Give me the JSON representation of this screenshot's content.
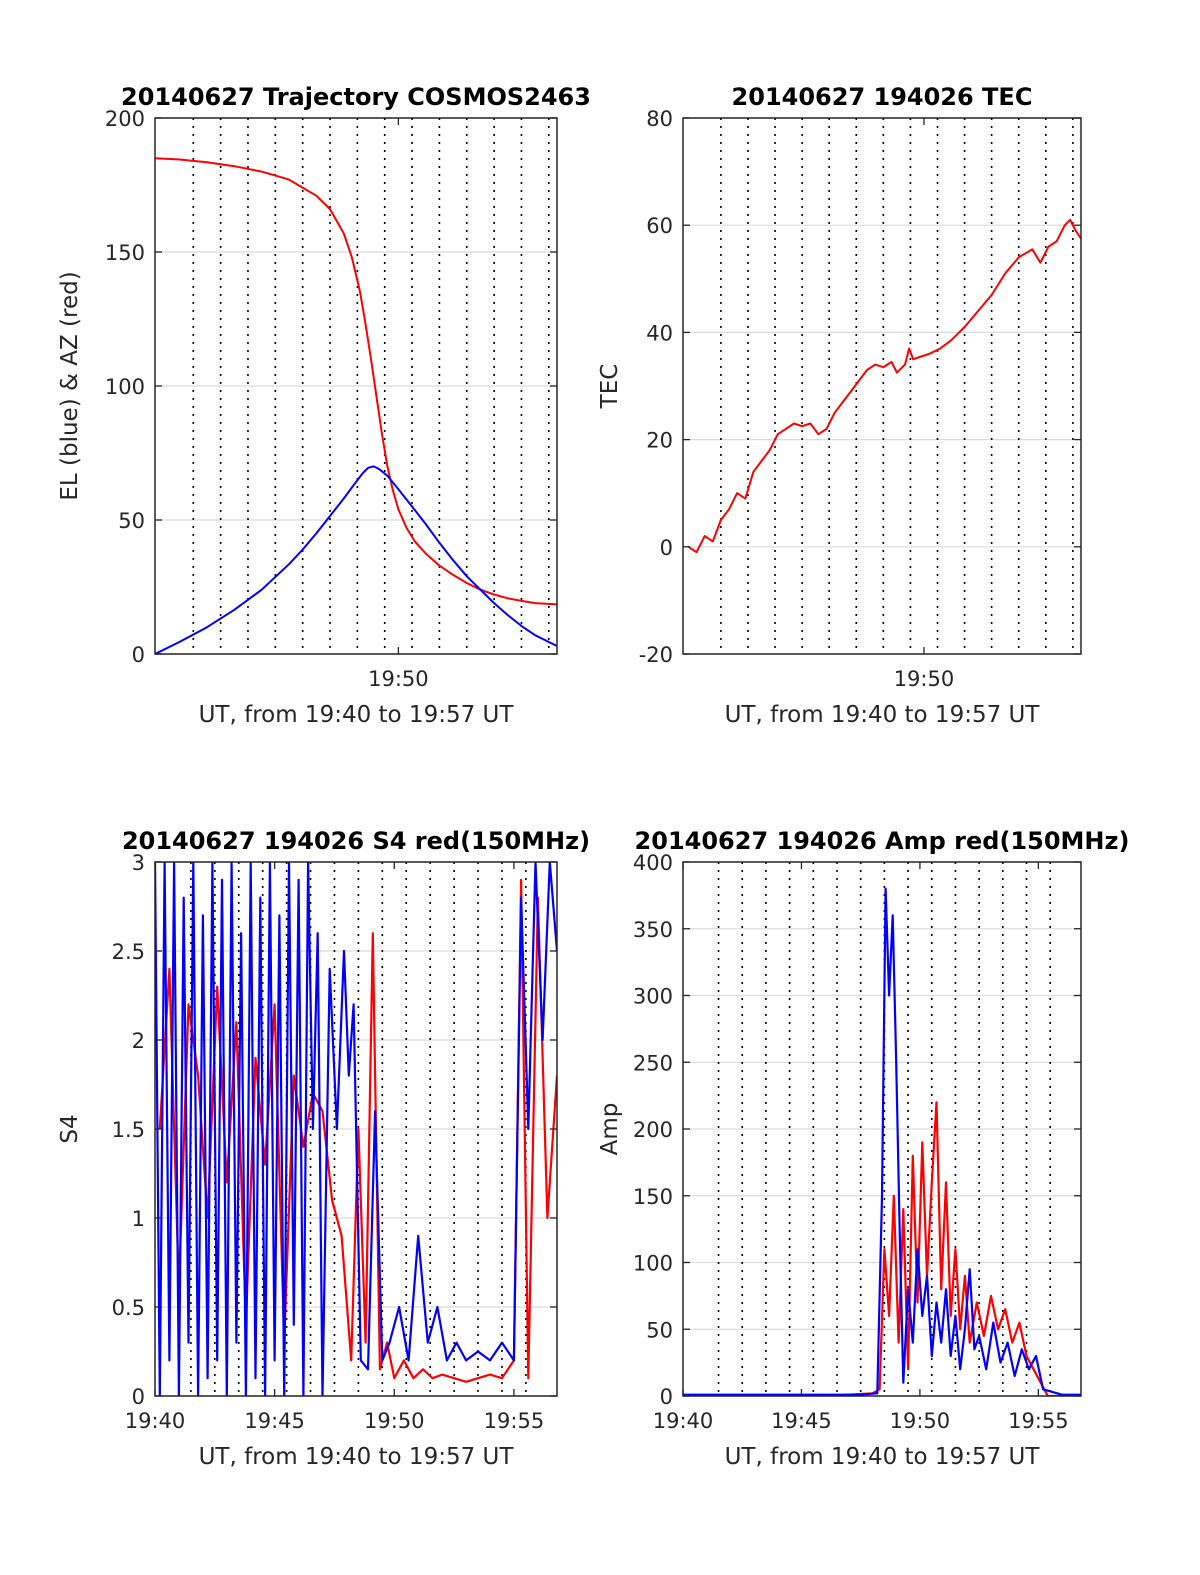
{
  "chart_data": [
    {
      "type": "line",
      "title": "20140627 Trajectory COSMOS2463",
      "xlabel": "UT, from 19:40 to 19:57 UT",
      "ylabel": "EL (blue) & AZ (red)",
      "xlim": [
        41.1,
        55.8
      ],
      "ylim": [
        0,
        200
      ],
      "xticks": [
        50
      ],
      "xtick_labels": [
        "19:50"
      ],
      "yticks": [
        0,
        50,
        100,
        150,
        200
      ],
      "ytick_labels": [
        "0",
        "50",
        "100",
        "150",
        "200"
      ],
      "vlines": [
        42.5,
        43.5,
        44.5,
        45.5,
        46.5,
        47.5,
        48.5,
        49.5,
        50.5,
        51.5,
        52.5,
        53.5,
        54.5,
        55.5
      ],
      "grid": true,
      "series": [
        {
          "name": "AZ",
          "color": "#ff0000",
          "x": [
            41.1,
            42.0,
            43.0,
            44.0,
            45.0,
            46.0,
            47.0,
            47.5,
            48.0,
            48.3,
            48.6,
            48.8,
            49.0,
            49.2,
            49.4,
            49.6,
            49.8,
            50.0,
            50.3,
            50.6,
            51.0,
            51.5,
            52.0,
            52.5,
            53.0,
            53.5,
            54.0,
            54.5,
            55.0,
            55.8
          ],
          "y": [
            185,
            184.5,
            183.5,
            182,
            180,
            177,
            171,
            166,
            157,
            148,
            135,
            123,
            110,
            96,
            82,
            70,
            61,
            54,
            47,
            42,
            37.5,
            33,
            29.5,
            26.5,
            24,
            22.2,
            20.8,
            19.8,
            19,
            18.5
          ]
        },
        {
          "name": "EL",
          "color": "#0000ff",
          "x": [
            41.1,
            42.0,
            43.0,
            44.0,
            45.0,
            46.0,
            46.5,
            47.0,
            47.5,
            48.0,
            48.4,
            48.7,
            48.9,
            49.1,
            49.3,
            49.6,
            50.0,
            50.5,
            51.0,
            51.5,
            52.0,
            52.5,
            53.0,
            53.5,
            54.0,
            54.5,
            55.0,
            55.8
          ],
          "y": [
            0,
            4.5,
            10,
            16.5,
            24,
            33.5,
            39,
            45,
            51.5,
            58,
            63.5,
            67.5,
            69.5,
            70,
            69,
            66.5,
            61.5,
            55,
            48.5,
            41.5,
            35,
            29,
            24,
            19,
            14.5,
            10.5,
            7,
            3
          ]
        }
      ]
    },
    {
      "type": "line",
      "title": "20140627 194026 TEC",
      "xlabel": "UT, from 19:40 to 19:57 UT",
      "ylabel": "TEC",
      "xlim": [
        41.1,
        55.8
      ],
      "ylim": [
        -20,
        80
      ],
      "xticks": [
        50
      ],
      "xtick_labels": [
        "19:50"
      ],
      "yticks": [
        -20,
        0,
        20,
        40,
        60,
        80
      ],
      "ytick_labels": [
        "-20",
        "0",
        "20",
        "40",
        "60",
        "80"
      ],
      "vlines": [
        42.5,
        43.5,
        44.5,
        45.5,
        46.5,
        47.5,
        48.5,
        49.5,
        50.5,
        51.5,
        52.5,
        53.5,
        54.5,
        55.5
      ],
      "grid": true,
      "series": [
        {
          "name": "TEC",
          "color": "#ff0000",
          "x": [
            41.3,
            41.6,
            41.9,
            42.2,
            42.5,
            42.8,
            43.1,
            43.4,
            43.7,
            44.0,
            44.3,
            44.6,
            44.9,
            45.2,
            45.5,
            45.8,
            46.1,
            46.4,
            46.7,
            47.0,
            47.3,
            47.6,
            47.9,
            48.2,
            48.5,
            48.8,
            49.0,
            49.3,
            49.45,
            49.6,
            49.9,
            50.2,
            50.6,
            51.0,
            51.5,
            52.0,
            52.5,
            53.0,
            53.5,
            54.0,
            54.3,
            54.6,
            54.9,
            55.2,
            55.4,
            55.6,
            55.8
          ],
          "y": [
            0,
            -1,
            2,
            1,
            5,
            7,
            10,
            9,
            14,
            16,
            18,
            21,
            22,
            23,
            22.5,
            23,
            21,
            22,
            25,
            27,
            29,
            31,
            33,
            34,
            33.5,
            34.5,
            32.5,
            34,
            37,
            35,
            35.5,
            36,
            37,
            38.5,
            41,
            44,
            47,
            51,
            54,
            55.5,
            53,
            56,
            57,
            60,
            61,
            59,
            57.5
          ]
        }
      ]
    },
    {
      "type": "line",
      "title": "20140627 194026 S4 red(150MHz)",
      "xlabel": "UT, from 19:40 to 19:57 UT",
      "ylabel": "S4",
      "xlim": [
        40,
        56.8
      ],
      "ylim": [
        0,
        3
      ],
      "xticks": [
        40,
        45,
        50,
        55
      ],
      "xtick_labels": [
        "19:40",
        "19:45",
        "19:50",
        "19:55"
      ],
      "yticks": [
        0,
        0.5,
        1,
        1.5,
        2,
        2.5,
        3
      ],
      "ytick_labels": [
        "0",
        "0.5",
        "1",
        "1.5",
        "2",
        "2.5",
        "3"
      ],
      "vlines": [
        41.5,
        42.5,
        43.5,
        44.5,
        45.5,
        46.5,
        47.5,
        48.5,
        49.5,
        50.5,
        51.5,
        52.5,
        53.5,
        54.5,
        55.5
      ],
      "grid": true,
      "series": [
        {
          "name": "red",
          "color": "#ff0000",
          "x": [
            40.2,
            40.6,
            41.0,
            41.4,
            41.8,
            42.2,
            42.6,
            43.0,
            43.4,
            43.8,
            44.2,
            44.6,
            45.0,
            45.4,
            45.8,
            46.2,
            46.6,
            47.0,
            47.4,
            47.8,
            48.2,
            48.5,
            48.8,
            49.1,
            49.4,
            49.7,
            50.0,
            50.4,
            50.8,
            51.2,
            51.6,
            52.0,
            52.5,
            53.0,
            53.5,
            54.0,
            54.5,
            55.0,
            55.3,
            55.6,
            56.0,
            56.4,
            56.8
          ],
          "y": [
            1.5,
            2.4,
            0.6,
            2.2,
            1.8,
            1.0,
            2.3,
            1.2,
            2.1,
            0.4,
            1.9,
            1.3,
            2.2,
            0.3,
            1.8,
            1.4,
            1.7,
            1.6,
            1.1,
            0.9,
            0.2,
            1.5,
            0.3,
            2.6,
            0.15,
            0.3,
            0.1,
            0.2,
            0.1,
            0.15,
            0.1,
            0.12,
            0.1,
            0.08,
            0.1,
            0.12,
            0.1,
            0.2,
            2.9,
            0.1,
            2.8,
            1.0,
            1.8
          ]
        },
        {
          "name": "blue",
          "color": "#0000ff",
          "x": [
            40.0,
            40.2,
            40.4,
            40.6,
            40.8,
            41.0,
            41.2,
            41.4,
            41.6,
            41.8,
            42.0,
            42.2,
            42.4,
            42.6,
            42.8,
            43.0,
            43.2,
            43.4,
            43.6,
            43.8,
            44.0,
            44.2,
            44.4,
            44.6,
            44.8,
            45.0,
            45.2,
            45.4,
            45.6,
            45.8,
            46.0,
            46.2,
            46.4,
            46.6,
            46.8,
            47.0,
            47.3,
            47.6,
            47.9,
            48.1,
            48.3,
            48.6,
            48.9,
            49.2,
            49.5,
            49.8,
            50.2,
            50.6,
            51.0,
            51.4,
            51.8,
            52.2,
            52.6,
            53.0,
            53.5,
            54.0,
            54.5,
            55.0,
            55.3,
            55.6,
            55.9,
            56.2,
            56.5,
            56.8
          ],
          "y": [
            3.0,
            0.0,
            3.0,
            0.2,
            3.0,
            0.0,
            2.8,
            0.3,
            3.0,
            0.0,
            2.7,
            0.1,
            3.0,
            0.2,
            2.9,
            0.0,
            3.0,
            0.3,
            2.6,
            0.0,
            3.0,
            0.1,
            2.8,
            0.0,
            3.0,
            0.2,
            2.7,
            0.0,
            3.0,
            0.4,
            2.9,
            0.0,
            3.0,
            1.5,
            2.6,
            0.0,
            2.4,
            1.5,
            2.5,
            1.8,
            2.2,
            0.2,
            0.15,
            1.6,
            0.2,
            0.3,
            0.5,
            0.2,
            0.9,
            0.3,
            0.5,
            0.2,
            0.3,
            0.2,
            0.25,
            0.2,
            0.3,
            0.2,
            2.8,
            1.5,
            3.0,
            2.0,
            3.0,
            2.5
          ]
        }
      ]
    },
    {
      "type": "line",
      "title": "20140627 194026 Amp red(150MHz)",
      "xlabel": "UT, from 19:40 to 19:57 UT",
      "ylabel": "Amp",
      "xlim": [
        40,
        56.8
      ],
      "ylim": [
        0,
        400
      ],
      "xticks": [
        40,
        45,
        50,
        55
      ],
      "xtick_labels": [
        "19:40",
        "19:45",
        "19:50",
        "19:55"
      ],
      "yticks": [
        0,
        50,
        100,
        150,
        200,
        250,
        300,
        350,
        400
      ],
      "ytick_labels": [
        "0",
        "50",
        "100",
        "150",
        "200",
        "250",
        "300",
        "350",
        "400"
      ],
      "vlines": [
        41.5,
        42.5,
        43.5,
        44.5,
        45.5,
        46.5,
        47.5,
        48.5,
        49.5,
        50.5,
        51.5,
        52.5,
        53.5,
        54.5,
        55.5
      ],
      "grid": true,
      "series": [
        {
          "name": "red",
          "color": "#ff0000",
          "x": [
            40.0,
            42.0,
            44.0,
            46.0,
            48.0,
            48.3,
            48.5,
            48.7,
            48.9,
            49.1,
            49.3,
            49.5,
            49.7,
            49.9,
            50.1,
            50.3,
            50.5,
            50.7,
            50.9,
            51.1,
            51.3,
            51.5,
            51.7,
            51.9,
            52.1,
            52.4,
            52.7,
            53.0,
            53.3,
            53.6,
            53.9,
            54.2,
            54.5,
            54.8,
            55.1,
            55.4,
            56.0,
            56.8
          ],
          "y": [
            0,
            0,
            0,
            0,
            2,
            5,
            110,
            60,
            150,
            40,
            140,
            20,
            180,
            70,
            190,
            90,
            160,
            220,
            80,
            160,
            60,
            110,
            50,
            90,
            40,
            70,
            45,
            75,
            50,
            65,
            40,
            55,
            30,
            20,
            10,
            0,
            0,
            0
          ]
        },
        {
          "name": "blue",
          "color": "#0000ff",
          "x": [
            40.0,
            42.0,
            44.0,
            46.0,
            47.5,
            48.2,
            48.4,
            48.55,
            48.7,
            48.85,
            49.0,
            49.15,
            49.3,
            49.5,
            49.7,
            49.9,
            50.1,
            50.3,
            50.5,
            50.7,
            50.9,
            51.1,
            51.3,
            51.5,
            51.7,
            51.9,
            52.1,
            52.3,
            52.5,
            52.8,
            53.1,
            53.4,
            53.7,
            54.0,
            54.3,
            54.6,
            54.9,
            55.2,
            56.0,
            56.8
          ],
          "y": [
            1,
            1,
            1,
            1,
            1,
            2,
            150,
            380,
            300,
            360,
            250,
            120,
            10,
            80,
            40,
            110,
            60,
            90,
            30,
            70,
            40,
            80,
            30,
            60,
            20,
            50,
            95,
            35,
            45,
            20,
            55,
            25,
            40,
            15,
            35,
            20,
            30,
            5,
            1,
            1
          ]
        }
      ]
    }
  ]
}
